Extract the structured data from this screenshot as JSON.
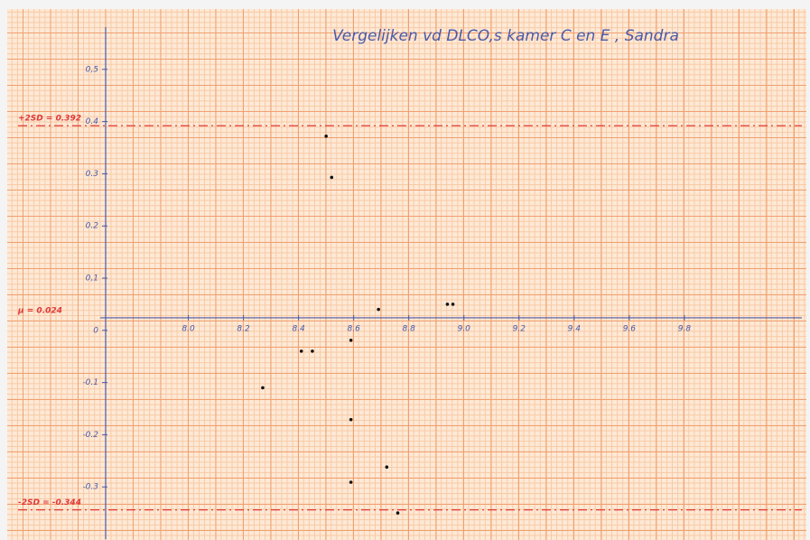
{
  "chart_data": {
    "type": "scatter",
    "title": "Vergelijken vd DLCO,s kamer C en E , Sandra",
    "x": [
      8.5,
      8.52,
      8.69,
      8.94,
      8.96,
      8.41,
      8.45,
      8.59,
      8.27,
      8.59,
      8.72,
      8.59,
      8.76
    ],
    "values": [
      0.372,
      0.293,
      0.04,
      0.05,
      0.05,
      -0.04,
      -0.04,
      -0.019,
      -0.11,
      -0.171,
      -0.262,
      -0.291,
      -0.35
    ],
    "color": "#111111",
    "xlim": [
      7.7,
      10.2
    ],
    "ylim": [
      -0.4,
      0.6
    ],
    "xticks": [
      {
        "value": 8,
        "label": "8.0"
      },
      8.2,
      8.4,
      8.6,
      8.8,
      {
        "value": 9,
        "label": "9.0"
      },
      9.2,
      9.4,
      9.6,
      9.8
    ],
    "yticks": [
      {
        "value": 0.5,
        "label": "0,5"
      },
      0.4,
      0.3,
      0.2,
      {
        "value": 0.1,
        "label": "0,1"
      },
      0,
      -0.1,
      -0.2,
      -0.3
    ],
    "reference_lines": [
      {
        "label": "+2SD = 0.392",
        "value": 0.392,
        "color": "#e03a3a",
        "dashed": true
      },
      {
        "label": "μ = 0.024",
        "value": 0.024,
        "color": "#4a5aa8",
        "dashed": false
      },
      {
        "label": "-2SD = -0.344",
        "value": -0.344,
        "color": "#e03a3a",
        "dashed": true
      }
    ]
  }
}
